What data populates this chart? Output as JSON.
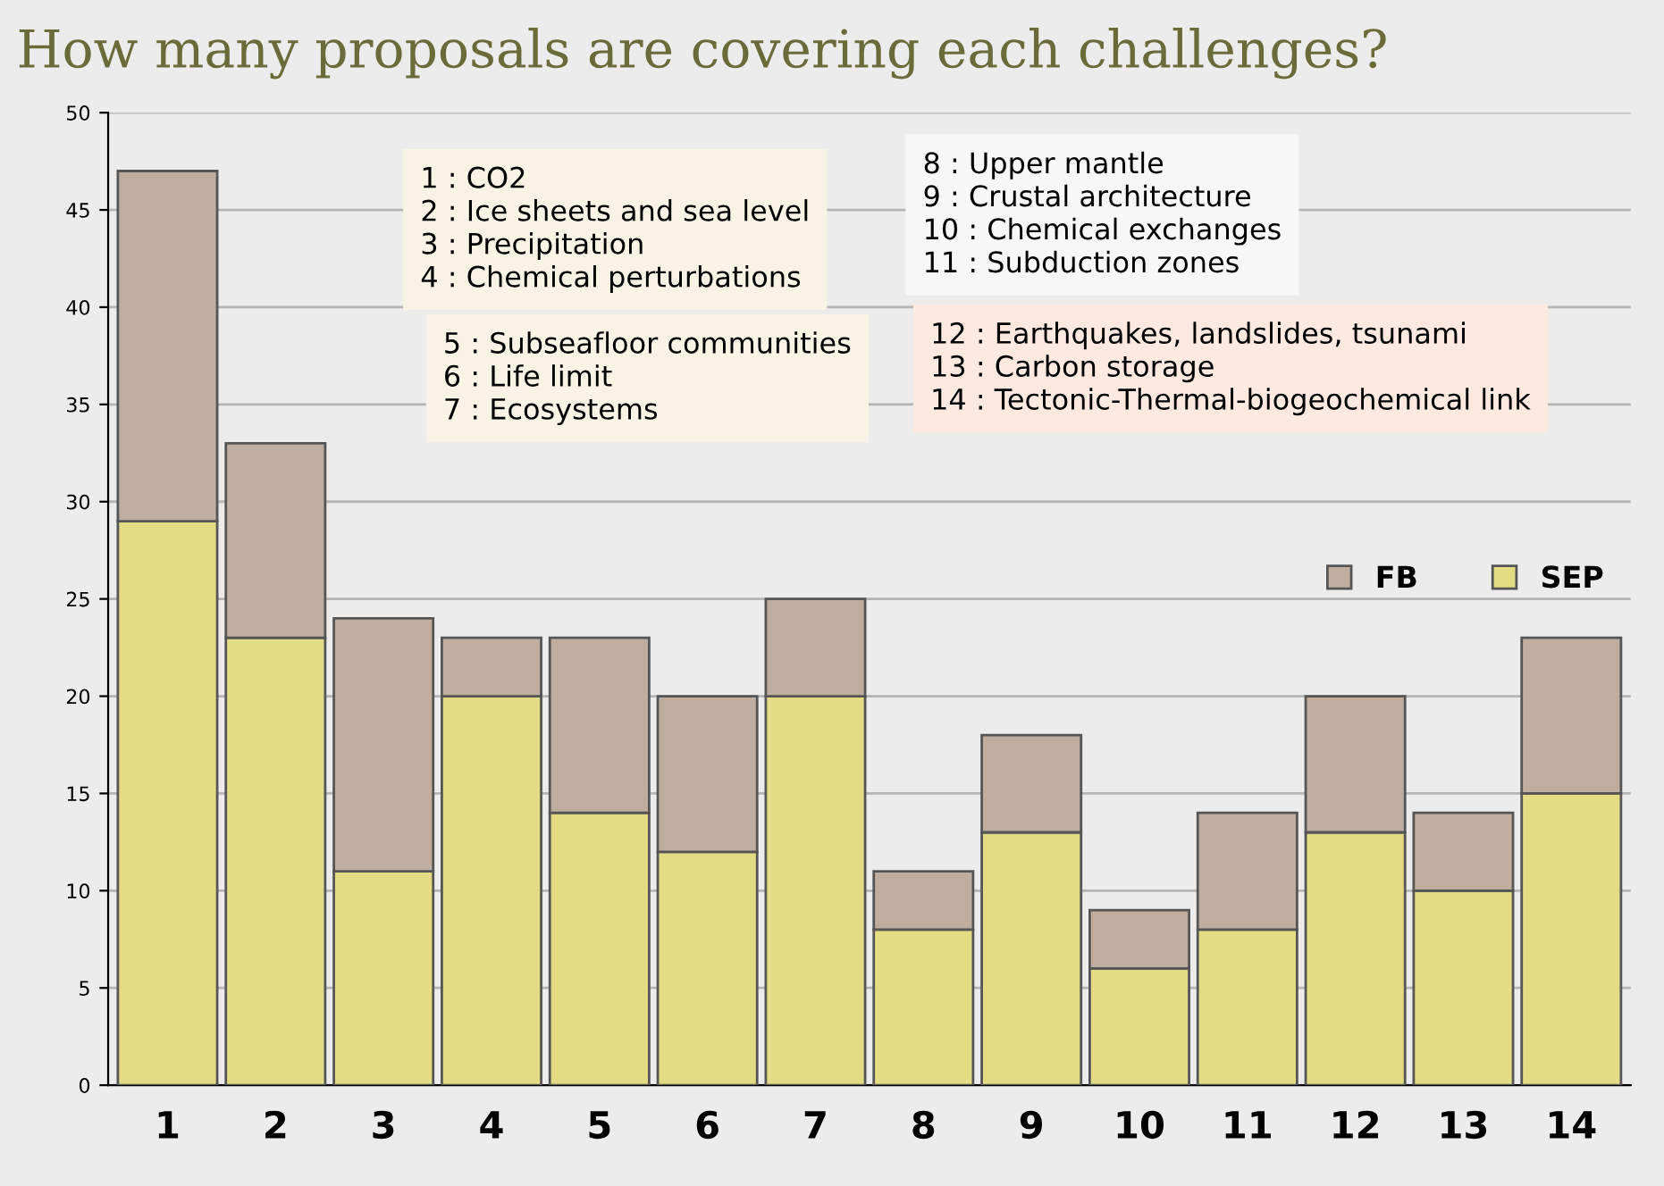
{
  "chart_data": {
    "type": "bar",
    "title": "How many proposals are covering each challenges?",
    "stacked": true,
    "categories": [
      "1",
      "2",
      "3",
      "4",
      "5",
      "6",
      "7",
      "8",
      "9",
      "10",
      "11",
      "12",
      "13",
      "14"
    ],
    "series": [
      {
        "name": "SEP",
        "color": "#e3dc84",
        "values": [
          29,
          23,
          11,
          20,
          14,
          12,
          20,
          8,
          13,
          6,
          8,
          13,
          10,
          15
        ]
      },
      {
        "name": "FB",
        "color": "#bfae9f",
        "values": [
          18,
          10,
          13,
          3,
          9,
          8,
          5,
          3,
          5,
          3,
          6,
          7,
          4,
          8
        ]
      }
    ],
    "ylim": [
      0,
      50
    ],
    "yticks": [
      0,
      5,
      10,
      15,
      20,
      25,
      30,
      35,
      40,
      45,
      50
    ],
    "grid": "y",
    "legend": "right",
    "annotations": [
      "1 : CO2\n2 : Ice sheets and sea level\n3 : Precipitation\n4 : Chemical perturbations",
      "8 : Upper mantle\n9 : Crustal architecture\n10 : Chemical exchanges\n11 : Subduction zones",
      "5 : Subseafloor communities\n6 : Life limit\n7 : Ecosystems",
      "12 : Earthquakes, landslides, tsunami\n13 : Carbon storage\n14 : Tectonic-Thermal-biogeochemical link"
    ]
  }
}
